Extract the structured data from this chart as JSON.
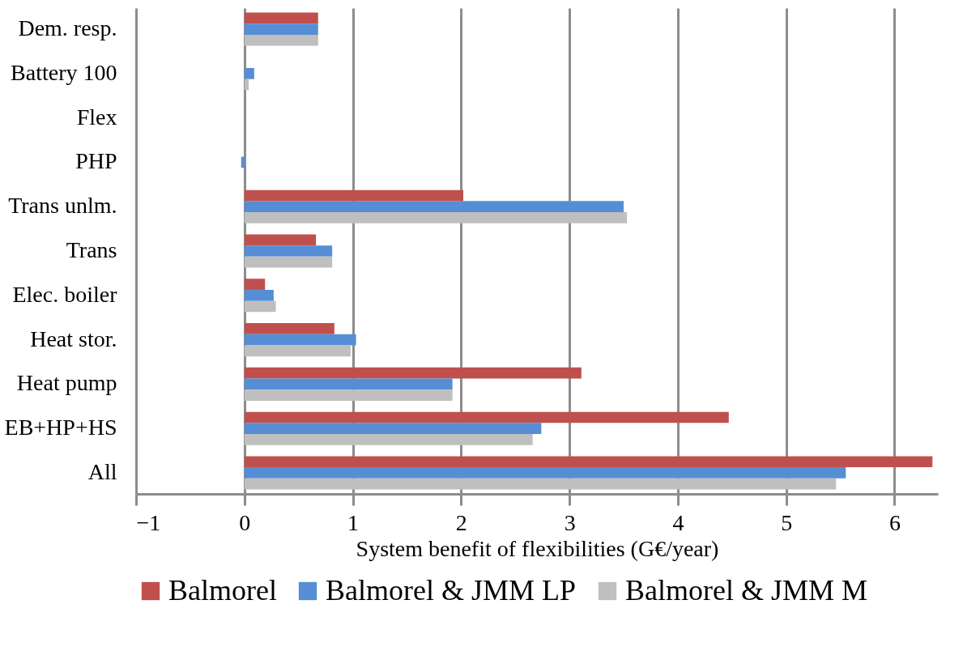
{
  "chart_data": {
    "type": "bar",
    "orientation": "horizontal",
    "xlabel": "System benefit of flexibilities (G€/year)",
    "categories": [
      "Dem. resp.",
      "Battery 100",
      "Flex",
      "PHP",
      "Trans unlm.",
      "Trans",
      "Elec. boiler",
      "Heat stor.",
      "Heat pump",
      "EB+HP+HS",
      "All"
    ],
    "series": [
      {
        "name": "Balmorel",
        "color": "#c0504d",
        "values": [
          0.68,
          0,
          0,
          0,
          2.02,
          0.66,
          0.19,
          0.83,
          3.11,
          4.47,
          6.35
        ]
      },
      {
        "name": "Balmorel & JMM LP",
        "color": "#558ed5",
        "values": [
          0.68,
          0.09,
          0,
          -0.03,
          3.5,
          0.81,
          0.27,
          1.03,
          1.92,
          2.74,
          5.55
        ]
      },
      {
        "name": "Balmorel & JMM M",
        "color": "#bfbfbf",
        "values": [
          0.68,
          0.04,
          0,
          0,
          3.53,
          0.81,
          0.29,
          0.98,
          1.92,
          2.66,
          5.46
        ]
      }
    ],
    "xlim": [
      -1,
      6.4
    ],
    "xticks": [
      -1,
      0,
      1,
      2,
      3,
      4,
      5,
      6
    ],
    "grid": "x",
    "legend": "bottom"
  }
}
